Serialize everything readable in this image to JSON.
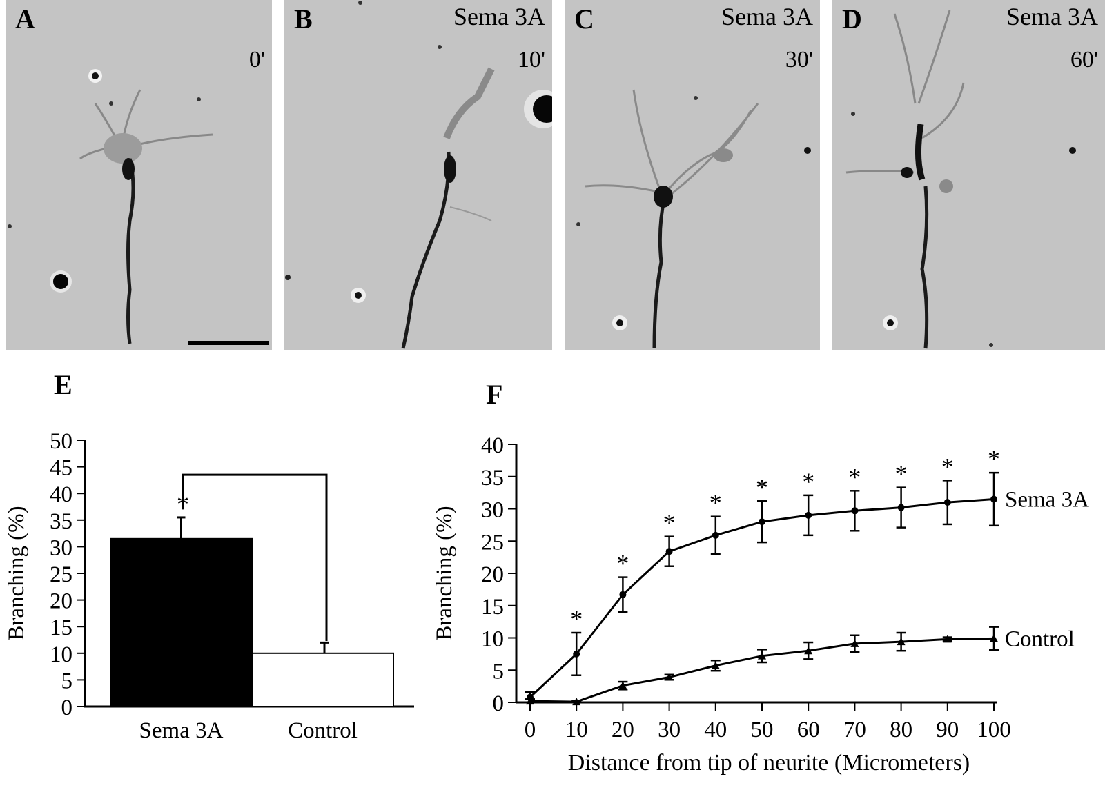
{
  "micrographs": [
    {
      "label": "A",
      "treatment": "",
      "time": "0'"
    },
    {
      "label": "B",
      "treatment": "Sema 3A",
      "time": "10'"
    },
    {
      "label": "C",
      "treatment": "Sema 3A",
      "time": "30'"
    },
    {
      "label": "D",
      "treatment": "Sema 3A",
      "time": "60'"
    }
  ],
  "panel_e_label": "E",
  "panel_f_label": "F",
  "chart_data": [
    {
      "type": "bar",
      "categories": [
        "Sema 3A",
        "Control"
      ],
      "values": [
        31.5,
        10
      ],
      "errors": [
        4,
        2
      ],
      "colors": [
        "#000000",
        "#ffffff"
      ],
      "ylabel": "Branching (%)",
      "ylim": [
        0,
        50
      ],
      "yticks": [
        0,
        5,
        10,
        15,
        20,
        25,
        30,
        35,
        40,
        45,
        50
      ],
      "significance": "*"
    },
    {
      "type": "line",
      "xlabel": "Distance from tip of neurite (Micrometers)",
      "ylabel": "Branching (%)",
      "xlim": [
        0,
        100
      ],
      "ylim": [
        0,
        40
      ],
      "xticks": [
        0,
        10,
        20,
        30,
        40,
        50,
        60,
        70,
        80,
        90,
        100
      ],
      "yticks": [
        0,
        5,
        10,
        15,
        20,
        25,
        30,
        35,
        40
      ],
      "x": [
        0,
        10,
        20,
        30,
        40,
        50,
        60,
        70,
        80,
        90,
        100
      ],
      "series": [
        {
          "name": "Sema 3A",
          "marker": "circle",
          "values": [
            0.8,
            7.5,
            16.7,
            23.4,
            25.9,
            28,
            29,
            29.7,
            30.2,
            31,
            31.5
          ],
          "errors": [
            0.8,
            3.3,
            2.7,
            2.3,
            2.9,
            3.2,
            3.1,
            3.1,
            3.1,
            3.4,
            4.1
          ],
          "significant": [
            false,
            true,
            true,
            true,
            true,
            true,
            true,
            true,
            true,
            true,
            true
          ]
        },
        {
          "name": "Control",
          "marker": "triangle",
          "values": [
            0.2,
            0.1,
            2.6,
            3.9,
            5.7,
            7.2,
            8,
            9.1,
            9.4,
            9.8,
            9.9
          ],
          "errors": [
            0.3,
            0.1,
            0.6,
            0.4,
            0.8,
            1,
            1.3,
            1.3,
            1.4,
            0.3,
            1.8
          ]
        }
      ],
      "significance": "*"
    }
  ]
}
